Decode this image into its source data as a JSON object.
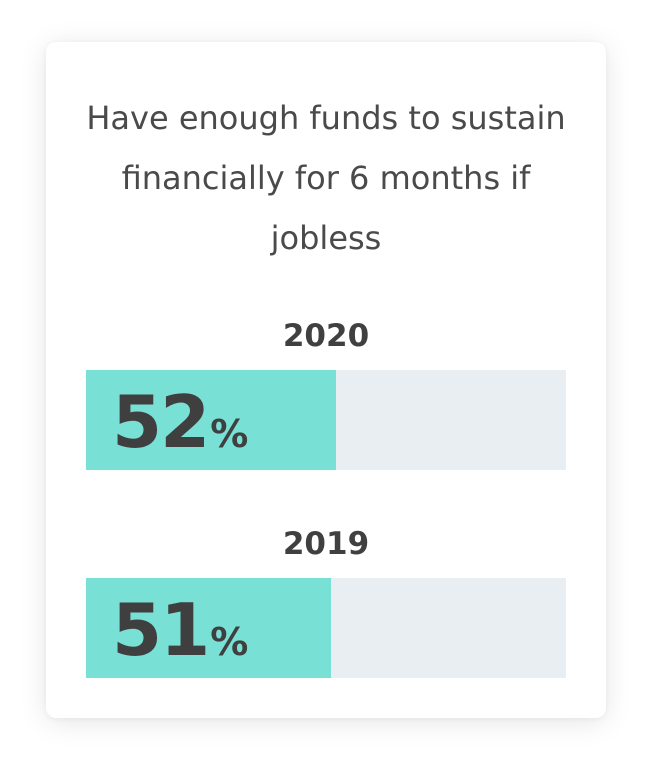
{
  "chart_data": {
    "type": "bar",
    "orientation": "horizontal",
    "title": "Have enough funds to sustain financially for 6 months if jobless",
    "categories": [
      "2020",
      "2019"
    ],
    "values": [
      52,
      51
    ],
    "unit": "%",
    "xlim": [
      0,
      100
    ],
    "grid": false,
    "legend": "none",
    "colors": {
      "fill": "#78e0d4",
      "track": "#e9eef2",
      "text": "#404040"
    }
  },
  "bars": [
    {
      "year": "2020",
      "value": "52",
      "unit": "%"
    },
    {
      "year": "2019",
      "value": "51",
      "unit": "%"
    }
  ]
}
